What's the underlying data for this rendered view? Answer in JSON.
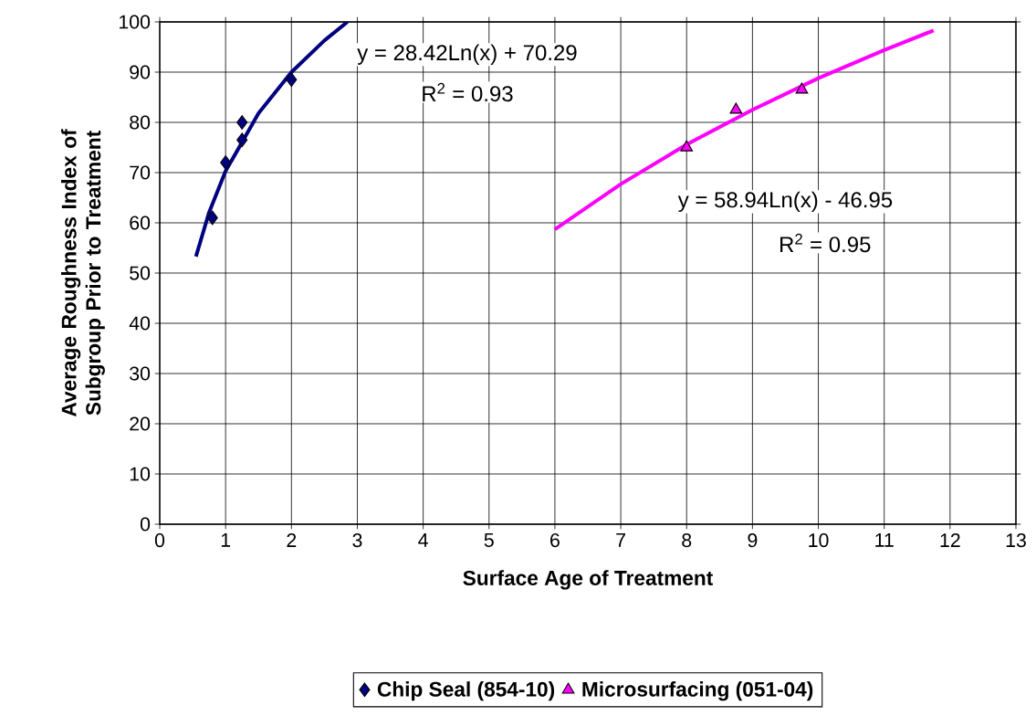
{
  "chart_data": {
    "type": "scatter",
    "xlabel": "Surface Age of Treatment",
    "ylabel": "Average Roughness Index of Subgroup Prior to Treatment",
    "xlim": [
      0,
      13
    ],
    "xticks": [
      0,
      1,
      2,
      3,
      4,
      5,
      6,
      7,
      8,
      9,
      10,
      11,
      12,
      13
    ],
    "ylim": [
      0,
      100
    ],
    "yticks": [
      0,
      10,
      20,
      30,
      40,
      50,
      60,
      70,
      80,
      90,
      100
    ],
    "grid": true,
    "legend": "bottom",
    "series": [
      {
        "name": "Chip  Seal (854-10)",
        "marker": "diamond",
        "color": "#000080",
        "x": [
          0.8,
          1.0,
          1.25,
          1.25,
          2.0
        ],
        "values": [
          61,
          72,
          80,
          76.5,
          88.5
        ]
      },
      {
        "name": "Microsurfacing (051-04)",
        "marker": "triangle",
        "color": "#ff00ff",
        "x": [
          8.0,
          8.75,
          9.75
        ],
        "values": [
          75,
          82.5,
          86.5
        ]
      },
      {
        "type": "line",
        "line_style": "solid",
        "color": "#000080",
        "x": [
          0.55,
          0.75,
          1.0,
          1.5,
          2.0,
          2.5,
          2.85
        ],
        "values": [
          53.3,
          62.1,
          70.3,
          81.8,
          90,
          96.3,
          100
        ]
      },
      {
        "type": "line",
        "line_style": "solid",
        "color": "#ff00ff",
        "x": [
          6,
          7,
          8,
          9,
          10,
          11,
          11.75
        ],
        "values": [
          58.7,
          67.7,
          75.6,
          82.5,
          88.8,
          94.4,
          98.3
        ]
      }
    ],
    "annotations": [
      "y = 28.42Ln(x) + 70.29",
      "R$^{2}$ = 0.93",
      "y = 58.94Ln(x) - 46.95",
      "R$^{2}$ = 0.95"
    ]
  }
}
